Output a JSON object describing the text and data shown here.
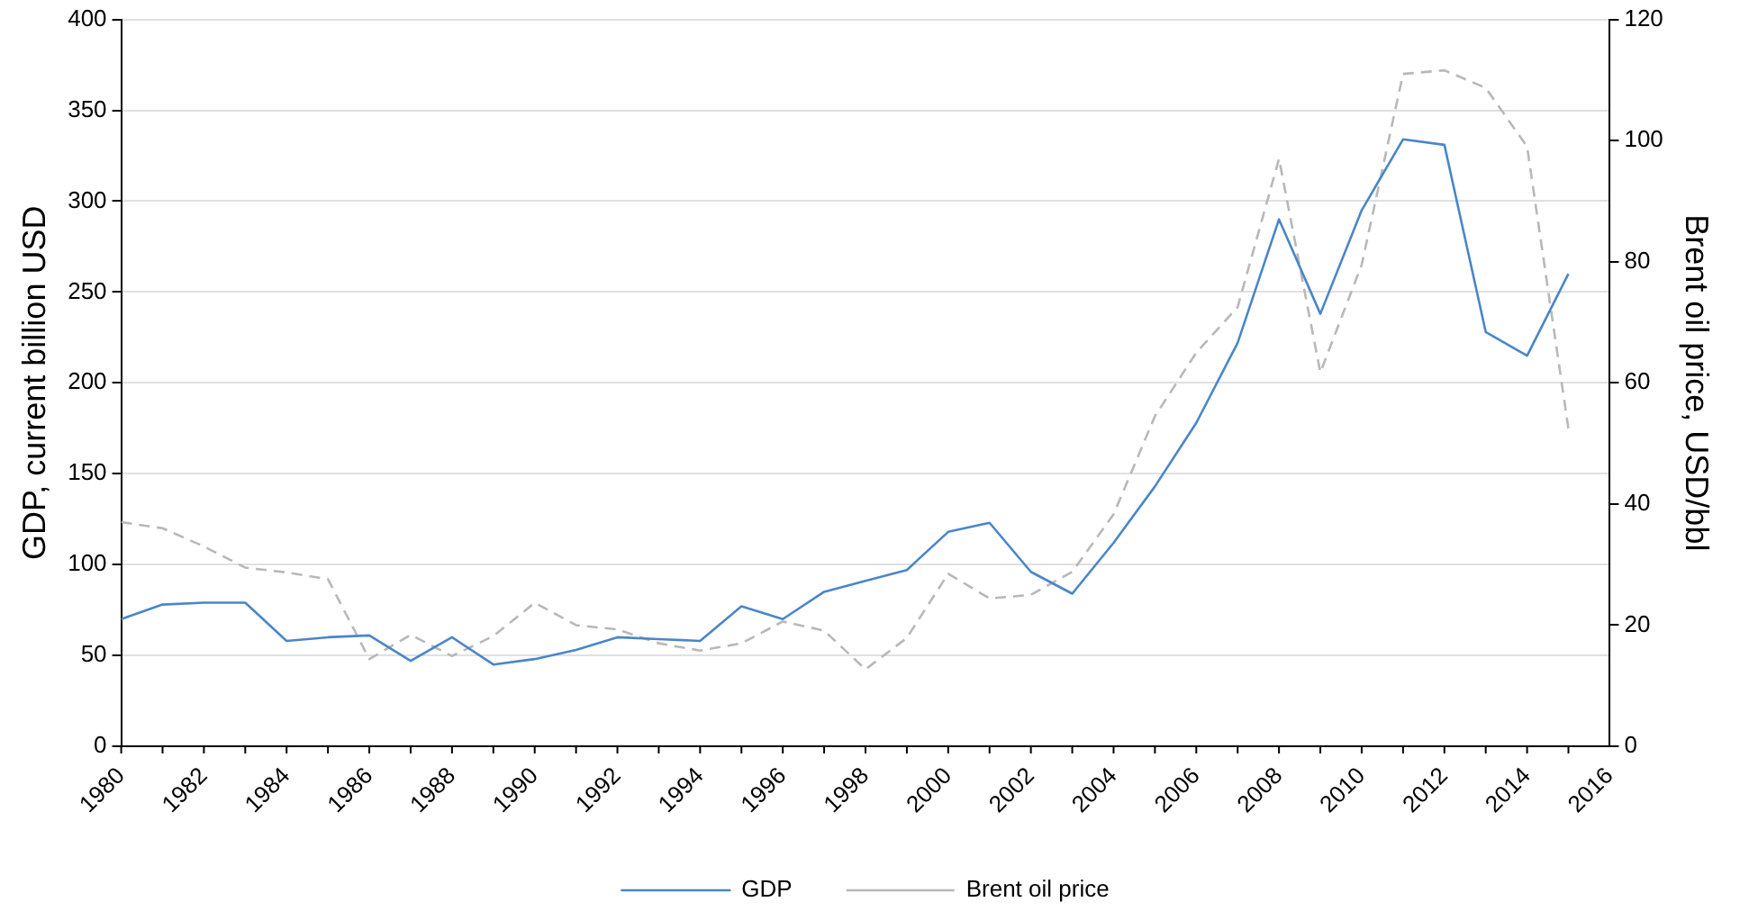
{
  "chart_data": {
    "type": "line",
    "ylabel": "GDP, current billion USD",
    "y2label": "Brent oil price, USD/bbl",
    "x": [
      1980,
      1981,
      1982,
      1983,
      1984,
      1985,
      1986,
      1987,
      1988,
      1989,
      1990,
      1991,
      1992,
      1993,
      1994,
      1995,
      1996,
      1997,
      1998,
      1999,
      2000,
      2001,
      2002,
      2003,
      2004,
      2005,
      2006,
      2007,
      2008,
      2009,
      2010,
      2011,
      2012,
      2013,
      2014,
      2015
    ],
    "series": [
      {
        "name": "GDP",
        "color": "#4a86c8",
        "line_style": "solid",
        "values": [
          70,
          78,
          79,
          79,
          58,
          60,
          61,
          47,
          60,
          45,
          48,
          53,
          60,
          59,
          58,
          77,
          70,
          85,
          91,
          97,
          118,
          123,
          96,
          84,
          112,
          143,
          178,
          222,
          290,
          238,
          295,
          334,
          331,
          228,
          215,
          260
        ]
      },
      {
        "name": "Brent oil price",
        "color": "#b8b8b8",
        "line_style": "dashed",
        "axis": "y2",
        "values": [
          37,
          36,
          33,
          29.5,
          28.7,
          27.6,
          14.4,
          18.4,
          14.9,
          18.2,
          23.7,
          20,
          19.3,
          17,
          15.8,
          17,
          20.6,
          19.1,
          12.7,
          17.9,
          28.5,
          24.4,
          25,
          28.8,
          38.3,
          54.5,
          65,
          72.5,
          97,
          61.7,
          79.5,
          111,
          111.6,
          108.7,
          99,
          52.4
        ]
      }
    ],
    "xlim": [
      1980,
      2016
    ],
    "xticks": [
      1980,
      1982,
      1984,
      1986,
      1988,
      1990,
      1992,
      1994,
      1996,
      1998,
      2000,
      2002,
      2004,
      2006,
      2008,
      2010,
      2012,
      2014,
      2016
    ],
    "ylim": [
      0,
      400
    ],
    "yticks": [
      0,
      50,
      100,
      150,
      200,
      250,
      300,
      350,
      400
    ],
    "y2lim": [
      0,
      120
    ],
    "y2ticks": [
      0,
      20,
      40,
      60,
      80,
      100,
      120
    ],
    "grid": "y",
    "legend": "bottom",
    "marker": "none"
  }
}
